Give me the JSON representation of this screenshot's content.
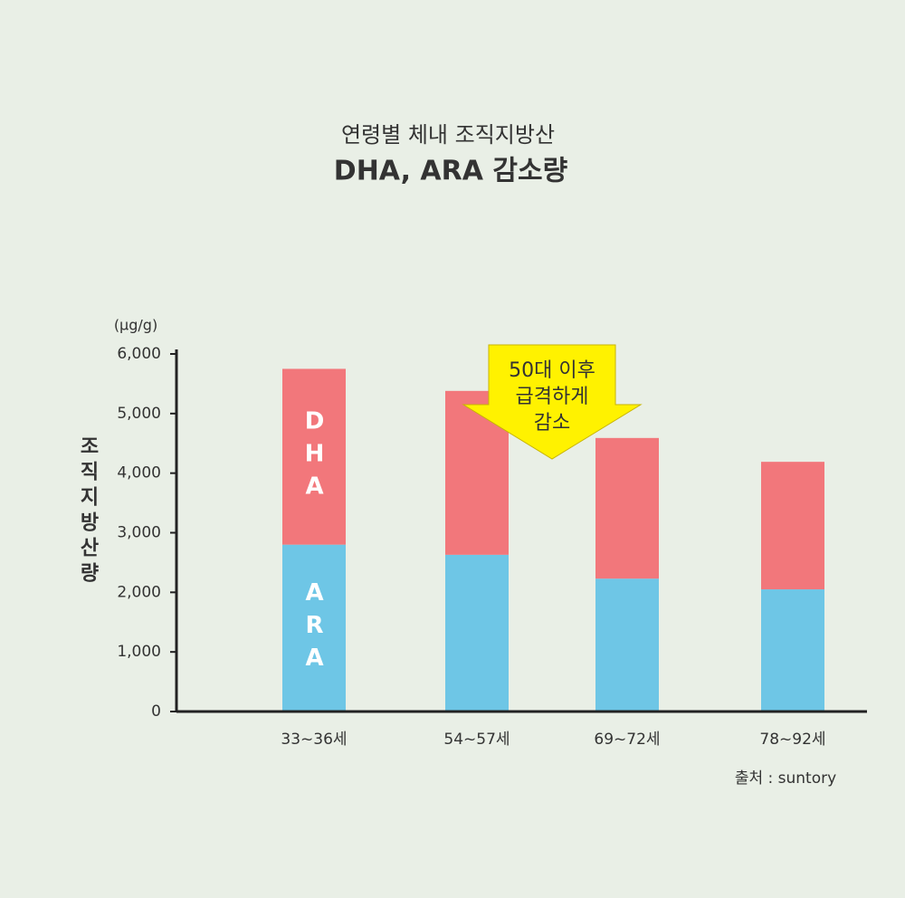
{
  "chart_data": {
    "type": "stacked_bar",
    "subtitle": "연령별 체내 조직지방산",
    "title": "DHA, ARA 감소량",
    "y_unit": "(µg/g)",
    "y_label": "조직지방산량",
    "categories": [
      "33~36세",
      "54~57세",
      "69~72세",
      "78~92세"
    ],
    "series": [
      {
        "name": "ARA",
        "color": "#6ec6e6",
        "values": [
          2800,
          2630,
          2230,
          2050
        ]
      },
      {
        "name": "DHA",
        "color": "#f2777b",
        "values": [
          2950,
          2750,
          2360,
          2140
        ]
      }
    ],
    "ylim": [
      0,
      6000
    ],
    "yticks": [
      0,
      {
        "value": 1000,
        "label": "1,000"
      },
      {
        "value": 2000,
        "label": "2,000"
      },
      {
        "value": 3000,
        "label": "3,000"
      },
      {
        "value": 4000,
        "label": "4,000"
      },
      {
        "value": 5000,
        "label": "5,000"
      },
      {
        "value": 6000,
        "label": "6,000"
      }
    ],
    "annotation": [
      "50대 이후",
      "급격하게",
      "감소"
    ],
    "source": "출처 : suntory"
  }
}
